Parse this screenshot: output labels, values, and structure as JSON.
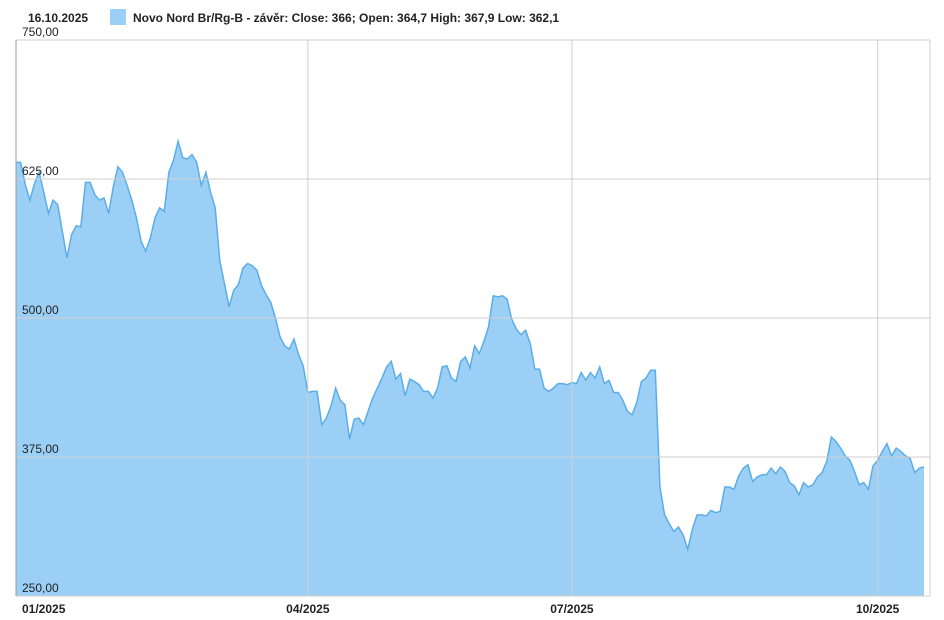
{
  "chart_data": {
    "type": "area",
    "title": "16.10.2025",
    "series": [
      {
        "name": "Novo Nord Br/Rg-B - závěr: Close: 366; Open: 364,7 High: 367,9 Low: 362,1",
        "color": "#9ccff6",
        "line_color": "#5aaee8",
        "values": [
          640,
          640,
          620,
          606,
          621,
          631,
          613,
          594,
          606,
          602,
          578,
          554,
          575,
          583,
          582,
          622,
          622,
          611,
          606,
          608,
          594,
          618,
          636,
          631,
          619,
          606,
          590,
          569,
          560,
          572,
          590,
          599,
          596,
          631,
          642,
          659,
          644,
          643,
          647,
          640,
          619,
          631,
          613,
          599,
          551,
          531,
          510,
          525,
          530,
          545,
          549,
          547,
          543,
          529,
          521,
          514,
          500,
          483,
          475,
          472,
          481,
          467,
          457,
          433,
          434,
          434,
          404,
          410,
          421,
          437,
          426,
          422,
          391,
          409,
          410,
          404,
          416,
          428,
          437,
          446,
          456,
          461,
          445,
          450,
          430,
          445,
          443,
          440,
          434,
          434,
          428,
          437,
          456,
          457,
          446,
          443,
          461,
          465,
          455,
          475,
          468,
          479,
          492,
          520,
          519,
          520,
          517,
          499,
          490,
          485,
          489,
          477,
          454,
          454,
          437,
          434,
          437,
          441,
          441,
          440,
          442,
          441,
          451,
          444,
          451,
          446,
          456,
          441,
          444,
          433,
          433,
          426,
          416,
          413,
          424,
          443,
          446,
          453,
          453,
          348,
          323,
          315,
          308,
          312,
          305,
          292,
          310,
          323,
          323,
          322,
          327,
          325,
          326,
          348,
          348,
          346,
          358,
          365,
          368,
          353,
          357,
          359,
          359,
          365,
          360,
          366,
          362,
          352,
          349,
          341,
          352,
          348,
          350,
          357,
          361,
          371,
          393,
          389,
          383,
          376,
          372,
          362,
          350,
          352,
          346,
          367,
          372,
          380,
          387,
          376,
          383,
          380,
          376,
          374,
          361,
          365,
          366
        ]
      }
    ],
    "xlim": [
      0,
      196
    ],
    "xticks": [
      {
        "value": 0,
        "label": "01/2025"
      },
      {
        "value": 63,
        "label": "04/2025"
      },
      {
        "value": 120,
        "label": "07/2025"
      },
      {
        "value": 186,
        "label": "10/2025"
      }
    ],
    "ylim": [
      250,
      750
    ],
    "yticks": [
      {
        "value": 250,
        "label": "250,00"
      },
      {
        "value": 375,
        "label": "375,00"
      },
      {
        "value": 500,
        "label": "500,00"
      },
      {
        "value": 625,
        "label": "625,00"
      },
      {
        "value": 750,
        "label": "750,00"
      }
    ],
    "grid": true
  }
}
